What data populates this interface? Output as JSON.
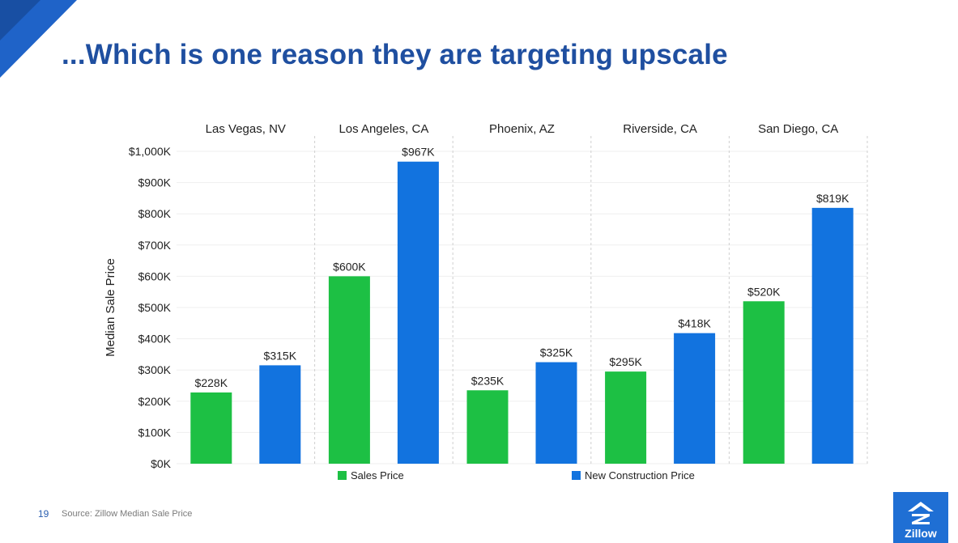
{
  "slide": {
    "title": "...Which is one reason they are targeting upscale",
    "page_number": "19",
    "source": "Source: Zillow Median Sale Price",
    "logo_text": "Zillow",
    "accent_color": "#1f4fa0"
  },
  "chart_data": {
    "type": "bar",
    "categories": [
      "Las Vegas, NV",
      "Los Angeles, CA",
      "Phoenix, AZ",
      "Riverside, CA",
      "San Diego, CA"
    ],
    "series": [
      {
        "name": "Sales Price",
        "color": "#1dc044",
        "values": [
          228,
          600,
          235,
          295,
          520
        ],
        "labels": [
          "$228K",
          "$600K",
          "$235K",
          "$295K",
          "$520K"
        ]
      },
      {
        "name": "New Construction Price",
        "color": "#1273df",
        "values": [
          315,
          967,
          325,
          418,
          819
        ],
        "labels": [
          "$315K",
          "$967K",
          "$325K",
          "$418K",
          "$819K"
        ]
      }
    ],
    "ylabel": "Median Sale Price",
    "ylim": [
      0,
      1000
    ],
    "yticks": [
      0,
      100,
      200,
      300,
      400,
      500,
      600,
      700,
      800,
      900,
      1000
    ],
    "ytick_labels": [
      "$0K",
      "$100K",
      "$200K",
      "$300K",
      "$400K",
      "$500K",
      "$600K",
      "$700K",
      "$800K",
      "$900K",
      "$1,000K"
    ],
    "grid": true,
    "legend_position": "bottom"
  }
}
